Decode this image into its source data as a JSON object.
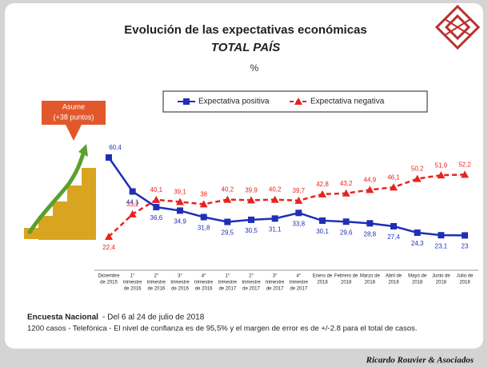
{
  "chart_data": {
    "type": "line",
    "title": "Evolución de las expectativas económicas",
    "subtitle": "TOTAL PAÍS",
    "unit_label": "%",
    "categories": [
      [
        "Diciembre",
        "de 2015"
      ],
      [
        "1°",
        "trimestre",
        "de 2016"
      ],
      [
        "2°",
        "trimestre",
        "de 2016"
      ],
      [
        "3°",
        "trimestre",
        "de 2016"
      ],
      [
        "4°",
        "trimestre",
        "de 2016"
      ],
      [
        "1°",
        "trimestre",
        "de 2017"
      ],
      [
        "2°",
        "trimestre",
        "de 2017"
      ],
      [
        "3°",
        "trimestre",
        "de 2017"
      ],
      [
        "4°",
        "trimestre",
        "de 2017"
      ],
      [
        "Enero de",
        "2018"
      ],
      [
        "Febrero de",
        "2018"
      ],
      [
        "Marzo de",
        "2018"
      ],
      [
        "Abril de",
        "2018"
      ],
      [
        "Mayo de",
        "2018"
      ],
      [
        "Junio de",
        "2018"
      ],
      [
        "Julio de",
        "2018"
      ]
    ],
    "series": [
      {
        "name": "Expectativa positiva",
        "color": "#1f2fb5",
        "marker": "square",
        "values": [
          60.4,
          44.1,
          36.6,
          34.9,
          31.8,
          29.5,
          30.5,
          31.1,
          33.8,
          30.1,
          29.6,
          28.8,
          27.4,
          24.3,
          23.1,
          23
        ],
        "value_labels": [
          "60,4",
          "44,1",
          "36,6",
          "34,9",
          "31,8",
          "29,5",
          "30,5",
          "31,1",
          "33,8",
          "30,1",
          "29,6",
          "28,8",
          "27,4",
          "24,3",
          "23,1",
          "23"
        ]
      },
      {
        "name": "Expectativa negativa",
        "color": "#e8231f",
        "marker": "triangle",
        "dashed": true,
        "values": [
          22.4,
          33.2,
          40.1,
          39.1,
          38,
          40.2,
          39.9,
          40.2,
          39.7,
          42.8,
          43.2,
          44.9,
          46.1,
          50.2,
          51.9,
          52.2
        ],
        "value_labels": [
          "22,4",
          "33,2",
          "40,1",
          "39,1",
          "38",
          "40,2",
          "39,9",
          "40,2",
          "39,7",
          "42,8",
          "43,2",
          "44,9",
          "46,1",
          "50,2",
          "51,9",
          "52,2"
        ]
      }
    ],
    "annotation": [
      "Asume",
      "(+38 puntos)"
    ]
  },
  "footer": {
    "line1_bold": "Encuesta Nacional",
    "line1_rest": " - Del 6 al 24 de julio de 2018",
    "line2": "1200 casos - Telefónica  -  El nivel de confianza es de 95,5% y el margen de error es de +/-2.8 para el total de casos.",
    "brand": "Ricardo Rouvier & Asociados"
  }
}
